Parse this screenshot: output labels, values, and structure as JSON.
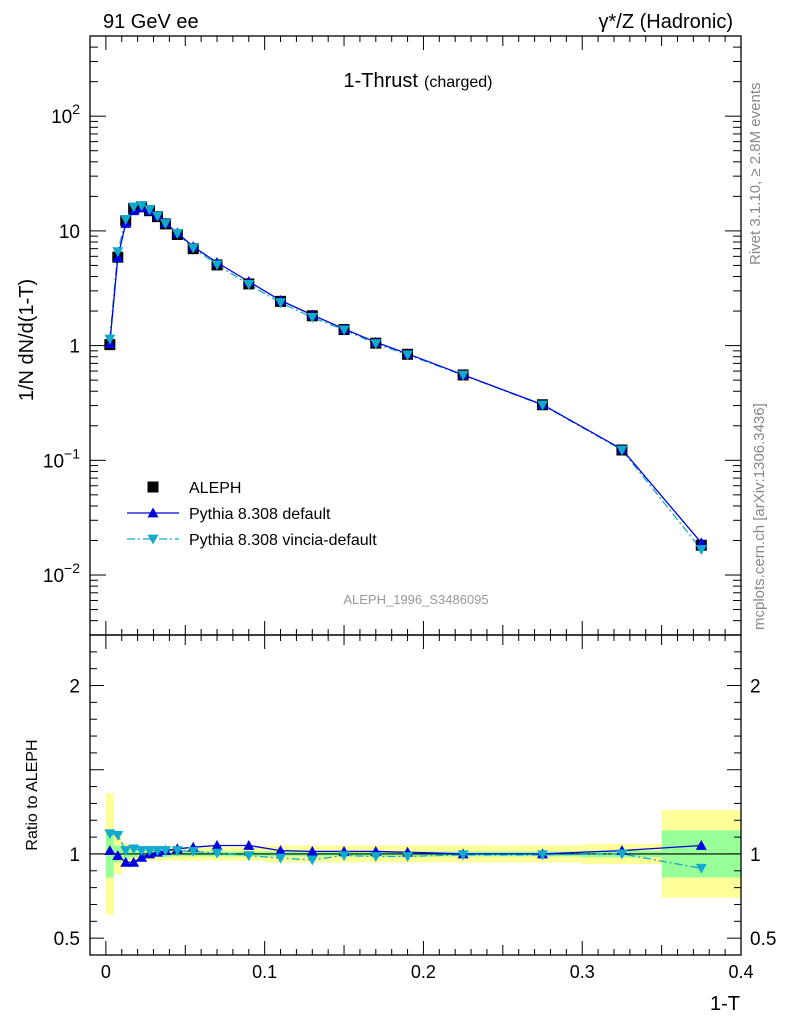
{
  "header": {
    "left": "91 GeV ee",
    "right": "γ*/Z (Hadronic)"
  },
  "side": {
    "rivet": "Rivet 3.1.10, ≥ 2.8M events",
    "mcplots": "mcplots.cern.ch [arXiv:1306.3436]"
  },
  "chart_data": [
    {
      "type": "line",
      "title": "1-Thrust",
      "subtitle": "(charged)",
      "analysis_id": "ALEPH_1996_S3486095",
      "ylabel": "1/N dN/d(1-T)",
      "xlabel": "",
      "yscale": "log",
      "xlim": [
        -0.01,
        0.4
      ],
      "ylim": [
        0.003,
        500
      ],
      "x_tick_labels": [
        "0",
        "0.1",
        "0.2",
        "0.3",
        "0.4"
      ],
      "y_tick_labels": [
        "10^-2",
        "10^-1",
        "1",
        "10",
        "10^2"
      ],
      "legend_position": "lower-left",
      "x": [
        0.0025,
        0.0075,
        0.0125,
        0.0175,
        0.0225,
        0.0275,
        0.0325,
        0.0375,
        0.045,
        0.055,
        0.07,
        0.09,
        0.11,
        0.13,
        0.15,
        0.17,
        0.19,
        0.225,
        0.275,
        0.325,
        0.375
      ],
      "series": [
        {
          "name": "ALEPH",
          "color": "#000000",
          "marker": "square",
          "values": [
            1.02,
            5.9,
            12.3,
            15.7,
            16.2,
            15.0,
            13.3,
            11.5,
            9.3,
            7.0,
            5.05,
            3.45,
            2.43,
            1.82,
            1.38,
            1.05,
            0.84,
            0.555,
            0.305,
            0.123,
            0.0182
          ]
        },
        {
          "name": "Pythia 8.308 default",
          "color": "#0000dd",
          "marker": "triangle-up",
          "line": "solid",
          "values": [
            1.04,
            5.85,
            11.6,
            15.0,
            15.9,
            15.0,
            13.5,
            11.7,
            9.6,
            7.3,
            5.3,
            3.62,
            2.48,
            1.85,
            1.4,
            1.07,
            0.85,
            0.557,
            0.306,
            0.125,
            0.0191
          ]
        },
        {
          "name": "Pythia 8.308 vincia-default",
          "color": "#11aacc",
          "marker": "triangle-down",
          "line": "dashdot",
          "values": [
            1.14,
            6.6,
            12.6,
            16.2,
            16.6,
            15.3,
            13.5,
            11.6,
            9.5,
            7.1,
            5.07,
            3.42,
            2.37,
            1.76,
            1.37,
            1.04,
            0.83,
            0.553,
            0.303,
            0.123,
            0.0167
          ]
        }
      ]
    },
    {
      "type": "line",
      "ylabel": "Ratio to ALEPH",
      "xlabel": "1-T",
      "xlim": [
        -0.01,
        0.4
      ],
      "ylim": [
        0.4,
        2.3
      ],
      "x_tick_labels": [
        "0",
        "0.1",
        "0.2",
        "0.3",
        "0.4"
      ],
      "y_tick_labels": [
        "0.5",
        "1",
        "2"
      ],
      "bands": {
        "x_edges": [
          0.0,
          0.005,
          0.01,
          0.015,
          0.02,
          0.025,
          0.03,
          0.035,
          0.04,
          0.05,
          0.06,
          0.08,
          0.1,
          0.12,
          0.14,
          0.16,
          0.18,
          0.2,
          0.25,
          0.3,
          0.35,
          0.4
        ],
        "stat_half_width": [
          0.14,
          0.05,
          0.03,
          0.02,
          0.02,
          0.02,
          0.02,
          0.02,
          0.015,
          0.015,
          0.015,
          0.015,
          0.015,
          0.015,
          0.015,
          0.015,
          0.015,
          0.015,
          0.015,
          0.02,
          0.14
        ],
        "total_half_width": [
          0.36,
          0.12,
          0.06,
          0.05,
          0.04,
          0.04,
          0.04,
          0.04,
          0.04,
          0.04,
          0.04,
          0.04,
          0.05,
          0.05,
          0.05,
          0.05,
          0.05,
          0.05,
          0.05,
          0.06,
          0.26
        ],
        "stat_color": "#99ff99",
        "total_color": "#ffff99"
      },
      "x": [
        0.0025,
        0.0075,
        0.0125,
        0.0175,
        0.0225,
        0.0275,
        0.0325,
        0.0375,
        0.045,
        0.055,
        0.07,
        0.09,
        0.11,
        0.13,
        0.15,
        0.17,
        0.19,
        0.225,
        0.275,
        0.325,
        0.375
      ],
      "series": [
        {
          "name": "Pythia 8.308 default",
          "color": "#0000dd",
          "values": [
            1.02,
            0.99,
            0.95,
            0.95,
            0.98,
            1.0,
            1.01,
            1.02,
            1.03,
            1.04,
            1.05,
            1.05,
            1.02,
            1.015,
            1.015,
            1.015,
            1.01,
            1.0,
            1.0,
            1.02,
            1.05
          ]
        },
        {
          "name": "Pythia 8.308 vincia-default",
          "color": "#11aacc",
          "values": [
            1.12,
            1.11,
            1.02,
            1.03,
            1.02,
            1.02,
            1.02,
            1.02,
            1.02,
            1.015,
            1.005,
            0.99,
            0.975,
            0.965,
            0.99,
            0.985,
            0.985,
            0.995,
            0.995,
            1.0,
            0.915
          ]
        }
      ]
    }
  ]
}
